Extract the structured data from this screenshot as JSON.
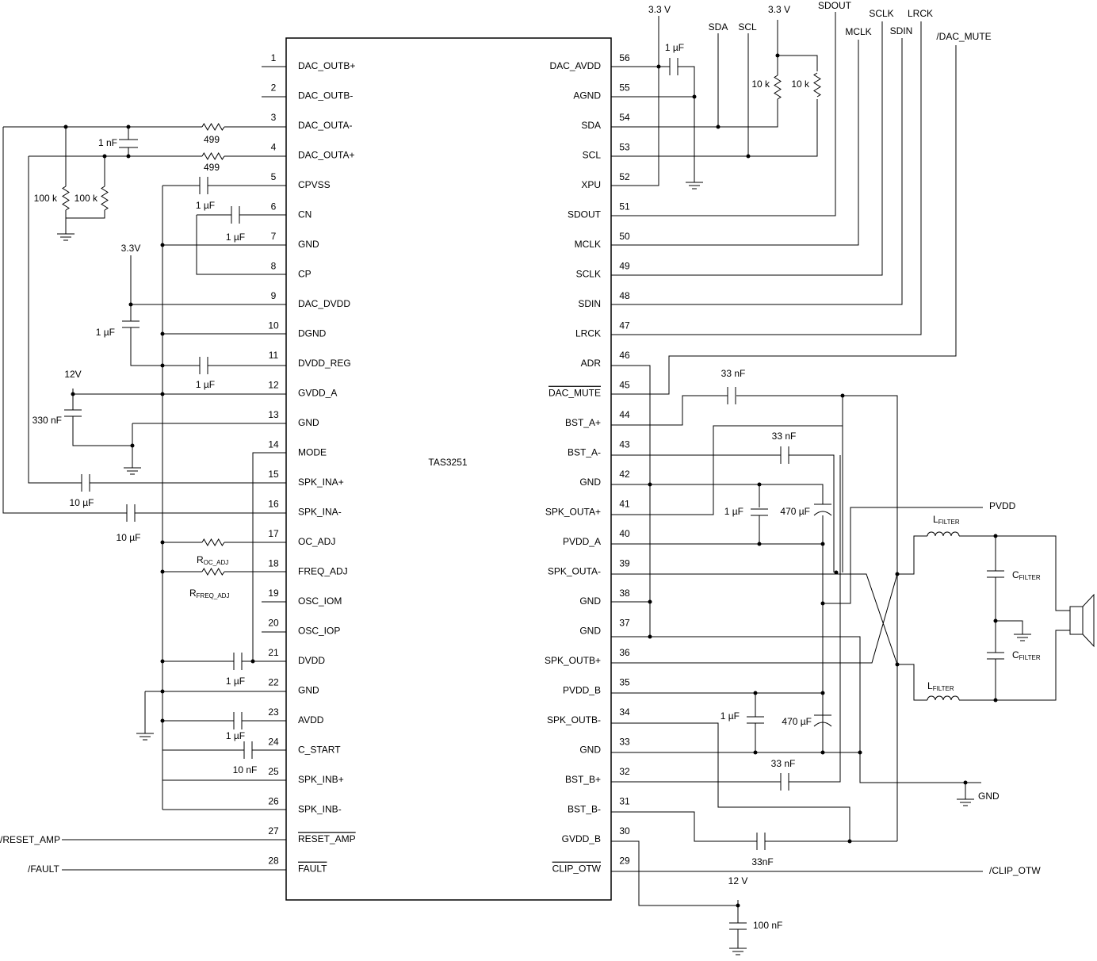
{
  "chip": {
    "name": "TAS3251",
    "left_pins": [
      {
        "number": 1,
        "name": "DAC_OUTB+"
      },
      {
        "number": 2,
        "name": "DAC_OUTB-"
      },
      {
        "number": 3,
        "name": "DAC_OUTA-"
      },
      {
        "number": 4,
        "name": "DAC_OUTA+"
      },
      {
        "number": 5,
        "name": "CPVSS"
      },
      {
        "number": 6,
        "name": "CN"
      },
      {
        "number": 7,
        "name": "GND"
      },
      {
        "number": 8,
        "name": "CP"
      },
      {
        "number": 9,
        "name": "DAC_DVDD"
      },
      {
        "number": 10,
        "name": "DGND"
      },
      {
        "number": 11,
        "name": "DVDD_REG"
      },
      {
        "number": 12,
        "name": "GVDD_A"
      },
      {
        "number": 13,
        "name": "GND"
      },
      {
        "number": 14,
        "name": "MODE"
      },
      {
        "number": 15,
        "name": "SPK_INA+"
      },
      {
        "number": 16,
        "name": "SPK_INA-"
      },
      {
        "number": 17,
        "name": "OC_ADJ"
      },
      {
        "number": 18,
        "name": "FREQ_ADJ"
      },
      {
        "number": 19,
        "name": "OSC_IOM"
      },
      {
        "number": 20,
        "name": "OSC_IOP"
      },
      {
        "number": 21,
        "name": "DVDD"
      },
      {
        "number": 22,
        "name": "GND"
      },
      {
        "number": 23,
        "name": "AVDD"
      },
      {
        "number": 24,
        "name": "C_START"
      },
      {
        "number": 25,
        "name": "SPK_INB+"
      },
      {
        "number": 26,
        "name": "SPK_INB-"
      },
      {
        "number": 27,
        "name": "RESET_AMP",
        "overline": true
      },
      {
        "number": 28,
        "name": "FAULT",
        "overline": true
      }
    ],
    "right_pins": [
      {
        "number": 56,
        "name": "DAC_AVDD"
      },
      {
        "number": 55,
        "name": "AGND"
      },
      {
        "number": 54,
        "name": "SDA"
      },
      {
        "number": 53,
        "name": "SCL"
      },
      {
        "number": 52,
        "name": "XPU"
      },
      {
        "number": 51,
        "name": "SDOUT"
      },
      {
        "number": 50,
        "name": "MCLK"
      },
      {
        "number": 49,
        "name": "SCLK"
      },
      {
        "number": 48,
        "name": "SDIN"
      },
      {
        "number": 47,
        "name": "LRCK"
      },
      {
        "number": 46,
        "name": "ADR"
      },
      {
        "number": 45,
        "name": "DAC_MUTE",
        "overline": true
      },
      {
        "number": 44,
        "name": "BST_A+"
      },
      {
        "number": 43,
        "name": "BST_A-"
      },
      {
        "number": 42,
        "name": "GND"
      },
      {
        "number": 41,
        "name": "SPK_OUTA+"
      },
      {
        "number": 40,
        "name": "PVDD_A"
      },
      {
        "number": 39,
        "name": "SPK_OUTA-"
      },
      {
        "number": 38,
        "name": "GND"
      },
      {
        "number": 37,
        "name": "GND"
      },
      {
        "number": 36,
        "name": "SPK_OUTB+"
      },
      {
        "number": 35,
        "name": "PVDD_B"
      },
      {
        "number": 34,
        "name": "SPK_OUTB-"
      },
      {
        "number": 33,
        "name": "GND"
      },
      {
        "number": 32,
        "name": "BST_B+"
      },
      {
        "number": 31,
        "name": "BST_B-"
      },
      {
        "number": 30,
        "name": "GVDD_B"
      },
      {
        "number": 29,
        "name": "CLIP_OTW",
        "overline": true
      }
    ]
  },
  "labels": [
    "1 nF",
    "499",
    "499",
    "100 k",
    "100 k",
    "1 µF",
    "1 µF",
    "3.3V",
    "1 µF",
    "1 µF",
    "12V",
    "330 nF",
    "10 µF",
    "10 µF",
    {
      "text": "R",
      "sub": "OC_ADJ"
    },
    {
      "text": "R",
      "sub": "FREQ_ADJ"
    },
    "1 µF",
    "1 µF",
    "10 nF",
    "/RESET_AMP",
    "/FAULT",
    "3.3 V",
    "1 µF",
    "SDA",
    "SCL",
    "3.3 V",
    "10 k",
    "10 k",
    "SDOUT",
    "MCLK",
    "SCLK",
    "SDIN",
    "LRCK",
    "/DAC_MUTE",
    "33 nF",
    "33 nF",
    "1 µF",
    "470 µF",
    "PVDD",
    {
      "text": "L",
      "sub": "FILTER"
    },
    {
      "text": "C",
      "sub": "FILTER"
    },
    {
      "text": "C",
      "sub": "FILTER"
    },
    {
      "text": "L",
      "sub": "FILTER"
    },
    "1 µF",
    "470 µF",
    "33 nF",
    "GND",
    "33nF",
    "/CLIP_OTW",
    "12 V",
    "100 nF"
  ]
}
